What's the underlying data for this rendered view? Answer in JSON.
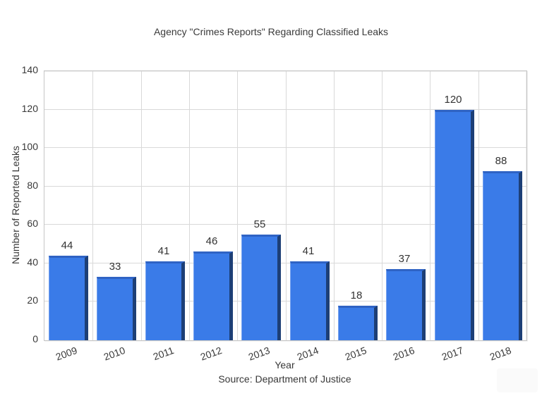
{
  "chart_data": {
    "type": "bar",
    "title": "Agency \"Crimes Reports\" Regarding Classified Leaks",
    "categories": [
      "2009",
      "2010",
      "2011",
      "2012",
      "2013",
      "2014",
      "2015",
      "2016",
      "2017",
      "2018"
    ],
    "values": [
      44,
      33,
      41,
      46,
      55,
      41,
      18,
      37,
      120,
      88
    ],
    "xlabel": "Year",
    "ylabel": "Number of Reported Leaks",
    "source": "Source: Department of Justice",
    "ylim": [
      0,
      140
    ],
    "yticks": [
      0,
      20,
      40,
      60,
      80,
      100,
      120,
      140
    ],
    "grid": true,
    "legend": "none",
    "value_labels_shown": true,
    "bar_color": "#3a7be8",
    "bar_shadow_color": "#1d3f76",
    "grid_color": "#d9d9d9",
    "text_color": "#383838"
  }
}
